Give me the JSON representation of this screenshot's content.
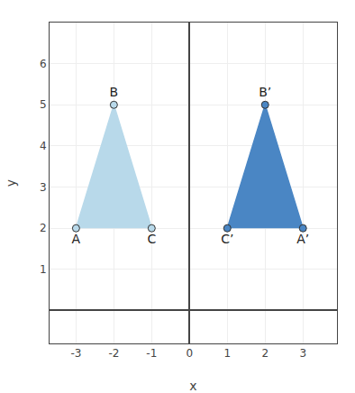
{
  "chart_data": {
    "type": "polygon",
    "xlabel": "x",
    "ylabel": "y",
    "xlim": [
      -3.7,
      3.9
    ],
    "ylim": [
      -0.8,
      7.0
    ],
    "xticks": [
      -3,
      -2,
      -1,
      0,
      1,
      2,
      3
    ],
    "yticks": [
      1,
      2,
      3,
      4,
      5,
      6
    ],
    "grid": true,
    "series": [
      {
        "x": [
          -3,
          -2,
          -1
        ],
        "y": [
          2,
          5,
          2
        ],
        "labels": [
          "A",
          "B",
          "C"
        ],
        "color": "#b8d9ea"
      },
      {
        "x": [
          3,
          2,
          1
        ],
        "y": [
          2,
          5,
          2
        ],
        "labels": [
          "A’",
          "B’",
          "C’"
        ],
        "color": "#4a86c4"
      }
    ]
  }
}
